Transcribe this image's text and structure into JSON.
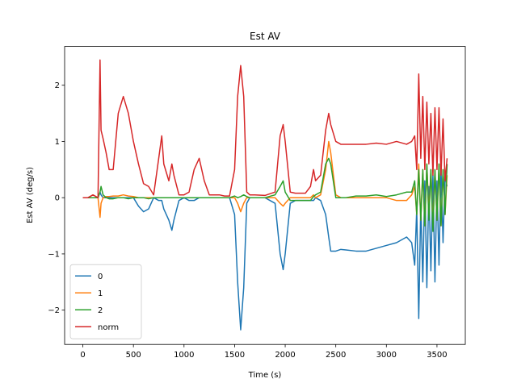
{
  "chart_data": {
    "type": "line",
    "title": "Est AV",
    "xlabel": "Time (s)",
    "ylabel": "Est AV (deg/s)",
    "x": [
      0,
      50,
      100,
      150,
      170,
      180,
      200,
      230,
      260,
      300,
      350,
      400,
      450,
      500,
      550,
      600,
      650,
      700,
      750,
      780,
      800,
      850,
      880,
      900,
      950,
      1000,
      1050,
      1100,
      1150,
      1200,
      1250,
      1300,
      1350,
      1400,
      1450,
      1500,
      1530,
      1560,
      1590,
      1620,
      1650,
      1700,
      1800,
      1900,
      1950,
      1980,
      2000,
      2050,
      2100,
      2200,
      2250,
      2280,
      2300,
      2350,
      2400,
      2430,
      2450,
      2500,
      2550,
      2600,
      2700,
      2800,
      2900,
      3000,
      3100,
      3200,
      3250,
      3280,
      3300,
      3320,
      3340,
      3360,
      3380,
      3400,
      3420,
      3440,
      3460,
      3480,
      3500,
      3520,
      3540,
      3560,
      3580,
      3600
    ],
    "series": [
      {
        "name": "0",
        "color": "#1f77b4",
        "values": [
          0,
          0,
          0,
          0,
          0.1,
          0.05,
          0,
          0,
          0,
          0,
          0,
          0,
          0,
          0,
          -0.15,
          -0.25,
          -0.2,
          0,
          -0.05,
          -0.05,
          -0.2,
          -0.4,
          -0.58,
          -0.4,
          -0.05,
          0,
          -0.05,
          -0.05,
          0,
          0,
          0,
          0,
          0,
          0,
          0,
          -0.3,
          -1.5,
          -2.35,
          -1.6,
          -0.1,
          0,
          0,
          0,
          -0.1,
          -1.0,
          -1.28,
          -1.0,
          -0.1,
          -0.05,
          -0.05,
          -0.05,
          -0.05,
          0,
          -0.05,
          -0.3,
          -0.7,
          -0.95,
          -0.95,
          -0.92,
          -0.93,
          -0.95,
          -0.95,
          -0.9,
          -0.85,
          -0.8,
          -0.7,
          -0.8,
          -1.2,
          -0.2,
          -2.15,
          -0.1,
          -1.5,
          0.3,
          -1.6,
          0.2,
          -1.3,
          0.4,
          -1.5,
          0.3,
          -1.2,
          0.5,
          -0.8,
          0.4,
          0.2
        ]
      },
      {
        "name": "1",
        "color": "#ff7f0e",
        "values": [
          0,
          0,
          0,
          0,
          -0.35,
          -0.1,
          0,
          0.02,
          0.02,
          0.03,
          0.03,
          0.05,
          0.03,
          0.02,
          0,
          0,
          0,
          0,
          0,
          0,
          0,
          0,
          0,
          0,
          0,
          0,
          0,
          0,
          0,
          0,
          0,
          0,
          0,
          0,
          0,
          0,
          -0.1,
          -0.25,
          -0.1,
          0,
          0,
          0,
          0,
          0,
          -0.1,
          -0.15,
          -0.1,
          0,
          0,
          0,
          0,
          0.05,
          0,
          0.05,
          0.5,
          1.0,
          0.8,
          0.05,
          0,
          0,
          0,
          0,
          0,
          0,
          -0.05,
          -0.05,
          0.05,
          0.2,
          -0.3,
          0.6,
          -0.4,
          0.5,
          -0.5,
          0.6,
          -0.3,
          0.5,
          -0.5,
          0.5,
          -0.4,
          0.6,
          -0.5,
          0.5,
          -0.3,
          0.4
        ]
      },
      {
        "name": "2",
        "color": "#2ca02c",
        "values": [
          0,
          0,
          0,
          0,
          0.1,
          0.2,
          0.05,
          0,
          -0.02,
          -0.02,
          0,
          0,
          -0.02,
          0,
          0,
          0,
          -0.02,
          0,
          0,
          0,
          0,
          0,
          0,
          0,
          0,
          0,
          0,
          0,
          0,
          0,
          0,
          0,
          0,
          0,
          0,
          0.03,
          0,
          0.02,
          0.05,
          0.02,
          0,
          0,
          0,
          0.05,
          0.2,
          0.3,
          0.1,
          -0.05,
          -0.05,
          -0.05,
          -0.05,
          0.02,
          0.05,
          0.1,
          0.6,
          0.7,
          0.6,
          0,
          0,
          0,
          0.03,
          0.03,
          0.05,
          0.02,
          0.05,
          0.1,
          0.1,
          0.3,
          -0.3,
          0.5,
          -0.4,
          0.5,
          -0.5,
          0.6,
          -0.4,
          0.5,
          -0.6,
          0.5,
          -0.4,
          0.6,
          -0.5,
          0.5,
          -0.3,
          0.6
        ]
      },
      {
        "name": "norm",
        "color": "#d62728",
        "values": [
          0,
          0,
          0.05,
          0,
          2.45,
          1.2,
          1.05,
          0.8,
          0.5,
          0.5,
          1.5,
          1.8,
          1.5,
          1.0,
          0.6,
          0.25,
          0.2,
          0.05,
          0.7,
          1.1,
          0.6,
          0.3,
          0.6,
          0.4,
          0.05,
          0.05,
          0.1,
          0.5,
          0.7,
          0.3,
          0.05,
          0.05,
          0.05,
          0.03,
          0.03,
          0.5,
          1.8,
          2.35,
          1.8,
          0.1,
          0.05,
          0.05,
          0.04,
          0.1,
          1.1,
          1.3,
          1.0,
          0.1,
          0.08,
          0.08,
          0.2,
          0.5,
          0.3,
          0.4,
          1.2,
          1.5,
          1.3,
          1.0,
          0.95,
          0.95,
          0.95,
          0.95,
          0.97,
          0.95,
          1.0,
          0.95,
          1.0,
          1.1,
          0.5,
          2.2,
          0.7,
          1.8,
          0.5,
          1.7,
          0.6,
          1.5,
          0.4,
          1.6,
          0.5,
          1.6,
          0.4,
          1.4,
          0.3,
          0.7
        ]
      }
    ],
    "xlim": [
      -180,
      3780
    ],
    "xticks": [
      0,
      500,
      1000,
      1500,
      2000,
      2500,
      3000,
      3500
    ],
    "ylim": [
      -2.61,
      2.69
    ],
    "yticks": [
      {
        "value": -2,
        "label": "−2"
      },
      {
        "value": -1,
        "label": "−1"
      },
      0,
      1,
      2
    ],
    "legend": "lower left"
  }
}
